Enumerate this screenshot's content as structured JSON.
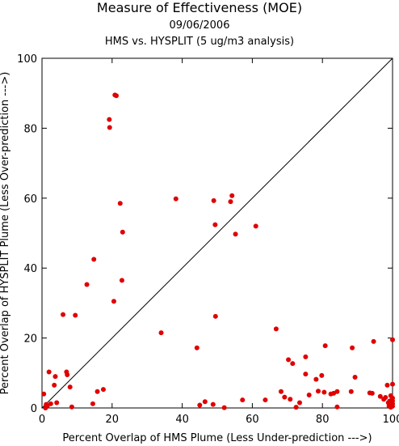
{
  "chart_data": {
    "type": "scatter",
    "title": "Measure of Effectiveness (MOE)",
    "subtitle": "09/06/2006",
    "subtitle2": "HMS vs. HYSPLIT  (5 ug/m3 analysis)",
    "xlabel": "Percent Overlap of HMS Plume (Less Under-prediction --->)",
    "ylabel": "Percent Overlap of HYSPLIT Plume (Less Over-prediction --->)",
    "xlim": [
      0,
      100
    ],
    "ylim": [
      0,
      100
    ],
    "xticks": [
      "0",
      "20",
      "40",
      "60",
      "80",
      "100"
    ],
    "yticks": [
      "0",
      "20",
      "40",
      "60",
      "80",
      "100"
    ],
    "grid": false,
    "reference_line": "y = x",
    "marker_color": "#e00000",
    "points": [
      [
        0.5,
        4
      ],
      [
        1,
        0
      ],
      [
        1.2,
        1
      ],
      [
        1.5,
        0.5
      ],
      [
        2,
        10.3
      ],
      [
        2.5,
        1.2
      ],
      [
        3.5,
        6.5
      ],
      [
        3.8,
        9
      ],
      [
        4.2,
        1.5
      ],
      [
        6,
        26.7
      ],
      [
        7,
        10.3
      ],
      [
        7.2,
        9.5
      ],
      [
        8,
        6
      ],
      [
        8.5,
        0.3
      ],
      [
        9.5,
        26.5
      ],
      [
        12.8,
        35.3
      ],
      [
        14.5,
        1.2
      ],
      [
        14.8,
        42.5
      ],
      [
        15.8,
        4.7
      ],
      [
        17.5,
        5.3
      ],
      [
        19.2,
        82.5
      ],
      [
        19.3,
        80.2
      ],
      [
        20.5,
        30.5
      ],
      [
        20.8,
        89.5
      ],
      [
        21.2,
        89.3
      ],
      [
        22.3,
        58.5
      ],
      [
        22.8,
        36.5
      ],
      [
        23,
        50.3
      ],
      [
        34,
        21.5
      ],
      [
        38.2,
        59.8
      ],
      [
        44.2,
        17.2
      ],
      [
        45,
        0.8
      ],
      [
        46.5,
        1.8
      ],
      [
        48.8,
        1
      ],
      [
        49,
        59.3
      ],
      [
        49.4,
        52.4
      ],
      [
        49.5,
        26.2
      ],
      [
        52,
        0.1
      ],
      [
        53.8,
        59
      ],
      [
        54.2,
        60.7
      ],
      [
        55.2,
        49.7
      ],
      [
        57.2,
        2.3
      ],
      [
        61,
        52
      ],
      [
        63.7,
        2.3
      ],
      [
        66.8,
        22.6
      ],
      [
        68.2,
        4.7
      ],
      [
        69.2,
        3.1
      ],
      [
        70.3,
        13.8
      ],
      [
        70.8,
        2.5
      ],
      [
        71.5,
        12.7
      ],
      [
        72.5,
        0.2
      ],
      [
        73.5,
        1.5
      ],
      [
        75.2,
        14.6
      ],
      [
        75.2,
        9.7
      ],
      [
        76.2,
        3.7
      ],
      [
        78.2,
        8.2
      ],
      [
        78.8,
        4.8
      ],
      [
        79.8,
        9.3
      ],
      [
        80.5,
        4.5
      ],
      [
        80.8,
        17.8
      ],
      [
        82.4,
        4
      ],
      [
        83.2,
        4.2
      ],
      [
        84.2,
        0.3
      ],
      [
        84.2,
        4.7
      ],
      [
        88.2,
        4.7
      ],
      [
        88.5,
        17.2
      ],
      [
        89.3,
        8.8
      ],
      [
        93.5,
        4.3
      ],
      [
        94.2,
        4.2
      ],
      [
        94.6,
        19
      ],
      [
        96.5,
        3.3
      ],
      [
        97.5,
        2.5
      ],
      [
        98,
        3
      ],
      [
        98.5,
        6.5
      ],
      [
        98.8,
        1.5
      ],
      [
        99,
        0.5
      ],
      [
        99.2,
        2
      ],
      [
        99.5,
        0.2
      ],
      [
        99.5,
        3.5
      ],
      [
        99.5,
        1
      ],
      [
        100,
        19.5
      ],
      [
        100,
        6.8
      ],
      [
        100,
        2.8
      ],
      [
        100,
        0.5
      ],
      [
        100,
        2
      ],
      [
        100,
        1.2
      ]
    ]
  }
}
